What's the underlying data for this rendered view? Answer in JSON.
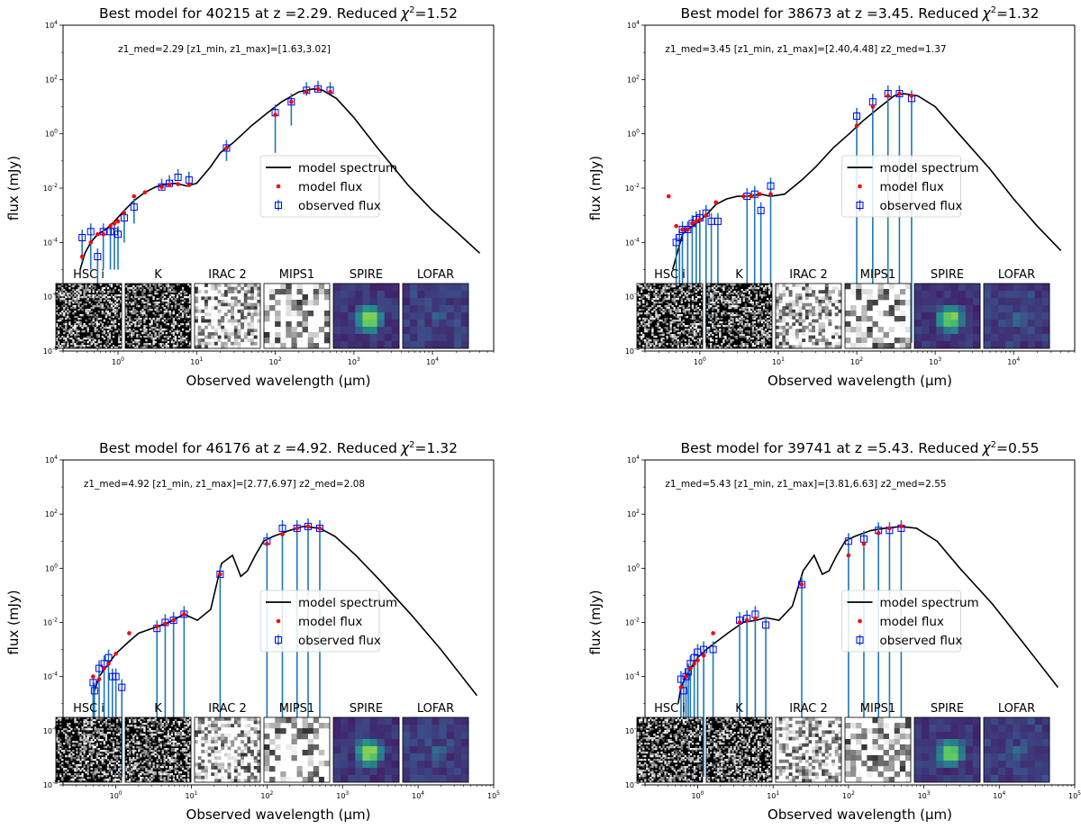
{
  "figure": {
    "legend": {
      "placement": "center",
      "entries": [
        "model spectrum",
        "model flux",
        "observed flux"
      ]
    },
    "colors": {
      "model_spectrum": "#000000",
      "model_flux": "#ff0000",
      "observed_flux": "#0000ff",
      "errorbar": "#1f77b4",
      "stamp_palette": "viridis / grayscale"
    }
  },
  "chart_data": [
    {
      "type": "scatter",
      "title": "Best model for 40215 at z =2.29. Reduced",
      "chi2_symbol": "χ",
      "chi2_sup": "2",
      "chi2_value": "=1.52",
      "annotation": "z1_med=2.29   [z1_min, z1_max]=[1.63,3.02]",
      "xlabel": "Observed wavelength (μm)",
      "ylabel": "flux (mJy)",
      "xscale": "log",
      "yscale": "log",
      "xlim": [
        0.2,
        60000
      ],
      "ylim": [
        1e-08,
        10000.0
      ],
      "xticks": [
        "10^0",
        "10^1",
        "10^2",
        "10^3",
        "10^4"
      ],
      "yticks": [
        "10^-8",
        "10^-6",
        "10^-4",
        "10^-2",
        "10^0",
        "10^2",
        "10^4"
      ],
      "stamps": [
        "HSC i",
        "K",
        "IRAC 2",
        "MIPS1",
        "SPIRE",
        "LOFAR"
      ],
      "model_spectrum": {
        "x": [
          0.33,
          0.38,
          0.45,
          0.55,
          0.7,
          0.9,
          1.2,
          1.6,
          2.2,
          3.0,
          4.0,
          5.5,
          7.5,
          10,
          15,
          20,
          30,
          50,
          80,
          120,
          200,
          300,
          400,
          600,
          1000,
          2000,
          5000,
          10000,
          20000,
          40000
        ],
        "y": [
          1e-05,
          4e-05,
          0.0001,
          0.0002,
          0.0003,
          0.0006,
          0.0015,
          0.0035,
          0.007,
          0.011,
          0.014,
          0.015,
          0.012,
          0.015,
          0.06,
          0.2,
          0.5,
          2,
          6,
          15,
          35,
          45,
          40,
          20,
          4,
          0.3,
          0.012,
          0.0015,
          0.00025,
          4e-05
        ]
      },
      "model_flux": {
        "x": [
          0.35,
          0.45,
          0.55,
          0.65,
          0.8,
          0.9,
          1.0,
          1.2,
          1.6,
          2.2,
          3.6,
          4.5,
          5.8,
          8.0,
          24,
          100,
          160,
          250,
          350,
          500
        ],
        "y": [
          3e-05,
          0.0001,
          0.0002,
          0.0002,
          0.0004,
          0.0005,
          0.0006,
          0.0012,
          0.005,
          0.007,
          0.011,
          0.013,
          0.014,
          0.013,
          0.3,
          5,
          15,
          35,
          45,
          35
        ]
      },
      "observed_flux": {
        "x": [
          0.35,
          0.45,
          0.55,
          0.65,
          0.8,
          0.9,
          1.0,
          1.2,
          1.6,
          3.6,
          4.5,
          5.8,
          8.0,
          24,
          100,
          160,
          250,
          350,
          500
        ],
        "y": [
          0.00015,
          0.00025,
          3e-05,
          0.00025,
          0.00025,
          0.00025,
          0.0002,
          0.0008,
          0.002,
          0.011,
          0.015,
          0.025,
          0.02,
          0.3,
          6,
          15,
          40,
          45,
          40
        ],
        "yerr_low": [
          0.00013,
          0.00024,
          3e-05,
          0.00024,
          0.00024,
          0.00024,
          0.00019,
          0.0007,
          0.0015,
          0.002,
          0.003,
          0.005,
          0.004,
          0.2,
          5.8,
          13,
          15,
          12,
          10
        ]
      }
    },
    {
      "type": "scatter",
      "title": "Best model for 38673 at z =3.45. Reduced",
      "chi2_symbol": "χ",
      "chi2_sup": "2",
      "chi2_value": "=1.32",
      "annotation": "z1_med=3.45    [z1_min, z1_max]=[2.40,4.48]    z2_med=1.37",
      "xlabel": "Observed wavelength (μm)",
      "ylabel": "flux (mJy)",
      "xscale": "log",
      "yscale": "log",
      "xlim": [
        0.2,
        60000
      ],
      "ylim": [
        1e-08,
        10000.0
      ],
      "xticks": [
        "10^0",
        "10^1",
        "10^2",
        "10^3",
        "10^4"
      ],
      "yticks": [
        "10^-8",
        "10^-6",
        "10^-4",
        "10^-2",
        "10^0",
        "10^2",
        "10^4"
      ],
      "stamps": [
        "HSC i",
        "K",
        "IRAC 2",
        "MIPS1",
        "SPIRE",
        "LOFAR"
      ],
      "model_spectrum": {
        "x": [
          0.45,
          0.5,
          0.6,
          0.7,
          0.9,
          1.2,
          1.6,
          2.2,
          3.0,
          4.0,
          6.0,
          8.0,
          12,
          20,
          30,
          50,
          80,
          120,
          200,
          300,
          400,
          600,
          1000,
          2000,
          5000,
          10000,
          20000,
          40000
        ],
        "y": [
          1e-05,
          3e-05,
          0.0002,
          0.0003,
          0.0005,
          0.001,
          0.0025,
          0.004,
          0.005,
          0.005,
          0.006,
          0.005,
          0.006,
          0.02,
          0.06,
          0.3,
          1,
          3,
          10,
          25,
          30,
          25,
          10,
          1,
          0.05,
          0.004,
          0.0004,
          5e-05
        ]
      },
      "model_flux": {
        "x": [
          0.4,
          0.5,
          0.6,
          0.7,
          0.8,
          0.9,
          1.0,
          1.2,
          1.6,
          3.6,
          4.5,
          5.8,
          8.0,
          100,
          160,
          250,
          350,
          500
        ],
        "y": [
          0.005,
          0.0004,
          0.0003,
          0.0003,
          0.0005,
          0.0006,
          0.0007,
          0.001,
          0.003,
          0.005,
          0.005,
          0.006,
          0.006,
          2,
          10,
          25,
          30,
          25
        ]
      },
      "observed_flux": {
        "x": [
          0.5,
          0.55,
          0.6,
          0.7,
          0.8,
          0.9,
          1.0,
          1.2,
          1.4,
          1.7,
          4.0,
          5.0,
          6.0,
          8.0,
          100,
          160,
          250,
          350,
          500
        ],
        "y": [
          0.0001,
          0.00015,
          0.0003,
          0.0003,
          0.0005,
          0.0007,
          0.0008,
          0.0012,
          0.0006,
          0.0006,
          0.005,
          0.006,
          0.0015,
          0.012,
          4.5,
          15,
          30,
          30,
          20
        ]
      }
    },
    {
      "type": "scatter",
      "title": "Best model for 46176 at z =4.92. Reduced",
      "chi2_symbol": "χ",
      "chi2_sup": "2",
      "chi2_value": "=1.32",
      "annotation": "z1_med=4.92    [z1_min, z1_max]=[2.77,6.97]    z2_med=2.08",
      "xlabel": "Observed wavelength (μm)",
      "ylabel": "flux (mJy)",
      "xscale": "log",
      "yscale": "log",
      "xlim": [
        0.2,
        100000
      ],
      "ylim": [
        1e-08,
        10000.0
      ],
      "xticks": [
        "10^0",
        "10^1",
        "10^2",
        "10^3",
        "10^4",
        "10^5"
      ],
      "yticks": [
        "10^-8",
        "10^-6",
        "10^-4",
        "10^-2",
        "10^0",
        "10^2",
        "10^4"
      ],
      "stamps": [
        "HSC i",
        "K",
        "IRAC 2",
        "MIPS1",
        "SPIRE",
        "LOFAR"
      ],
      "model_spectrum": {
        "x": [
          0.5,
          0.6,
          0.8,
          1.0,
          1.5,
          2.0,
          3.0,
          5.0,
          8.0,
          12,
          18,
          25,
          35,
          45,
          55,
          70,
          90,
          120,
          200,
          300,
          500,
          800,
          1500,
          3000,
          8000,
          20000,
          60000
        ],
        "y": [
          2e-05,
          0.0001,
          0.0003,
          0.0007,
          0.002,
          0.004,
          0.006,
          0.01,
          0.02,
          0.012,
          0.03,
          1.5,
          3,
          0.5,
          0.8,
          3,
          10,
          15,
          25,
          35,
          30,
          15,
          3,
          0.4,
          0.02,
          0.001,
          2e-05
        ]
      },
      "model_flux": {
        "x": [
          0.5,
          0.6,
          0.7,
          0.8,
          1.0,
          1.5,
          3.5,
          4.5,
          5.8,
          8.0,
          24,
          100,
          160,
          250,
          350,
          500
        ],
        "y": [
          0.0001,
          8e-05,
          0.0002,
          0.0003,
          0.0007,
          0.004,
          0.007,
          0.009,
          0.012,
          0.02,
          0.6,
          8,
          18,
          30,
          35,
          30
        ]
      },
      "observed_flux": {
        "x": [
          0.5,
          0.52,
          0.6,
          0.7,
          0.8,
          0.9,
          1.0,
          1.2,
          3.5,
          4.5,
          5.8,
          8.0,
          24,
          100,
          160,
          250,
          350,
          500
        ],
        "y": [
          6e-05,
          3e-05,
          0.0002,
          0.0003,
          0.0005,
          0.0001,
          0.0001,
          4e-05,
          0.006,
          0.01,
          0.012,
          0.02,
          0.6,
          10,
          30,
          30,
          35,
          30
        ]
      }
    },
    {
      "type": "scatter",
      "title": "Best model for 39741 at z =5.43. Reduced",
      "chi2_symbol": "χ",
      "chi2_sup": "2",
      "chi2_value": "=0.55",
      "annotation": "z1_med=5.43    [z1_min, z1_max]=[3.81,6.63]    z2_med=2.55",
      "xlabel": "Observed wavelength (μm)",
      "ylabel": "flux (mJy)",
      "xscale": "log",
      "yscale": "log",
      "xlim": [
        0.2,
        100000
      ],
      "ylim": [
        1e-08,
        10000.0
      ],
      "xticks": [
        "10^0",
        "10^1",
        "10^2",
        "10^3",
        "10^4",
        "10^5"
      ],
      "yticks": [
        "10^-8",
        "10^-6",
        "10^-4",
        "10^-2",
        "10^0",
        "10^2",
        "10^4"
      ],
      "stamps": [
        "HSC i",
        "K",
        "IRAC 2",
        "MIPS1",
        "SPIRE",
        "LOFAR"
      ],
      "model_spectrum": {
        "x": [
          0.55,
          0.6,
          0.7,
          0.8,
          1.0,
          1.3,
          1.8,
          2.5,
          4.0,
          6.0,
          8.0,
          12,
          18,
          25,
          35,
          45,
          55,
          70,
          90,
          120,
          200,
          300,
          500,
          800,
          1500,
          3000,
          8000,
          20000,
          60000
        ],
        "y": [
          1e-05,
          4e-05,
          0.0001,
          0.0002,
          0.0005,
          0.001,
          0.002,
          0.004,
          0.01,
          0.012,
          0.015,
          0.012,
          0.04,
          0.8,
          3,
          0.6,
          0.8,
          3,
          10,
          15,
          25,
          30,
          35,
          30,
          10,
          1,
          0.05,
          0.002,
          4e-05
        ]
      },
      "model_flux": {
        "x": [
          0.6,
          0.7,
          0.8,
          0.9,
          1.0,
          1.2,
          1.6,
          3.6,
          4.5,
          5.8,
          24,
          100,
          160,
          250,
          350,
          500
        ],
        "y": [
          4e-05,
          0.0001,
          0.0002,
          0.0003,
          0.0004,
          0.0006,
          0.004,
          0.01,
          0.012,
          0.014,
          0.25,
          3,
          8,
          20,
          30,
          35
        ]
      },
      "observed_flux": {
        "x": [
          0.6,
          0.65,
          0.7,
          0.75,
          0.8,
          0.9,
          1.0,
          1.2,
          1.6,
          3.6,
          4.5,
          5.8,
          8.0,
          24,
          100,
          160,
          250,
          350,
          500
        ],
        "y": [
          8e-05,
          3e-05,
          0.0001,
          0.00015,
          0.0003,
          0.0005,
          0.0008,
          0.001,
          0.001,
          0.012,
          0.014,
          0.02,
          0.008,
          0.25,
          10,
          12,
          25,
          25,
          30
        ]
      }
    }
  ]
}
